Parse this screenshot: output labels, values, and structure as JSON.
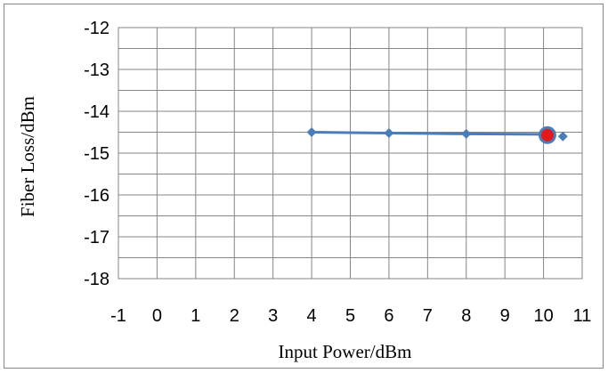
{
  "chart_data": {
    "type": "scatter",
    "title": "",
    "xlabel": "Input Power/dBm",
    "ylabel": "Fiber Loss/dBm",
    "xlim": [
      -1,
      11
    ],
    "ylim": [
      -18,
      -12
    ],
    "x_major_ticks": [
      -1,
      0,
      1,
      2,
      3,
      4,
      5,
      6,
      7,
      8,
      9,
      10,
      11
    ],
    "y_major_ticks": [
      -12,
      -13,
      -14,
      -15,
      -16,
      -17,
      -18
    ],
    "grid": "major and minor",
    "series": [
      {
        "marker": "diamond",
        "color": "#4a7ebb",
        "connected": true,
        "points": [
          [
            4,
            -14.5
          ],
          [
            6,
            -14.52
          ],
          [
            8,
            -14.54
          ],
          [
            10,
            -14.55
          ]
        ]
      },
      {
        "marker": "diamond",
        "color": "#4a7ebb",
        "connected": false,
        "points": [
          [
            10.5,
            -14.6
          ]
        ]
      },
      {
        "marker": "circle",
        "color": "#e31a1c",
        "outline": "#4a7ebb",
        "connected": false,
        "points": [
          [
            10.1,
            -14.57
          ]
        ]
      }
    ],
    "x_tick_labels": [
      "-1",
      "0",
      "1",
      "2",
      "3",
      "4",
      "5",
      "6",
      "7",
      "8",
      "9",
      "10",
      "11"
    ],
    "y_tick_labels": [
      "-12",
      "-13",
      "-14",
      "-15",
      "-16",
      "-17",
      "-18"
    ]
  }
}
